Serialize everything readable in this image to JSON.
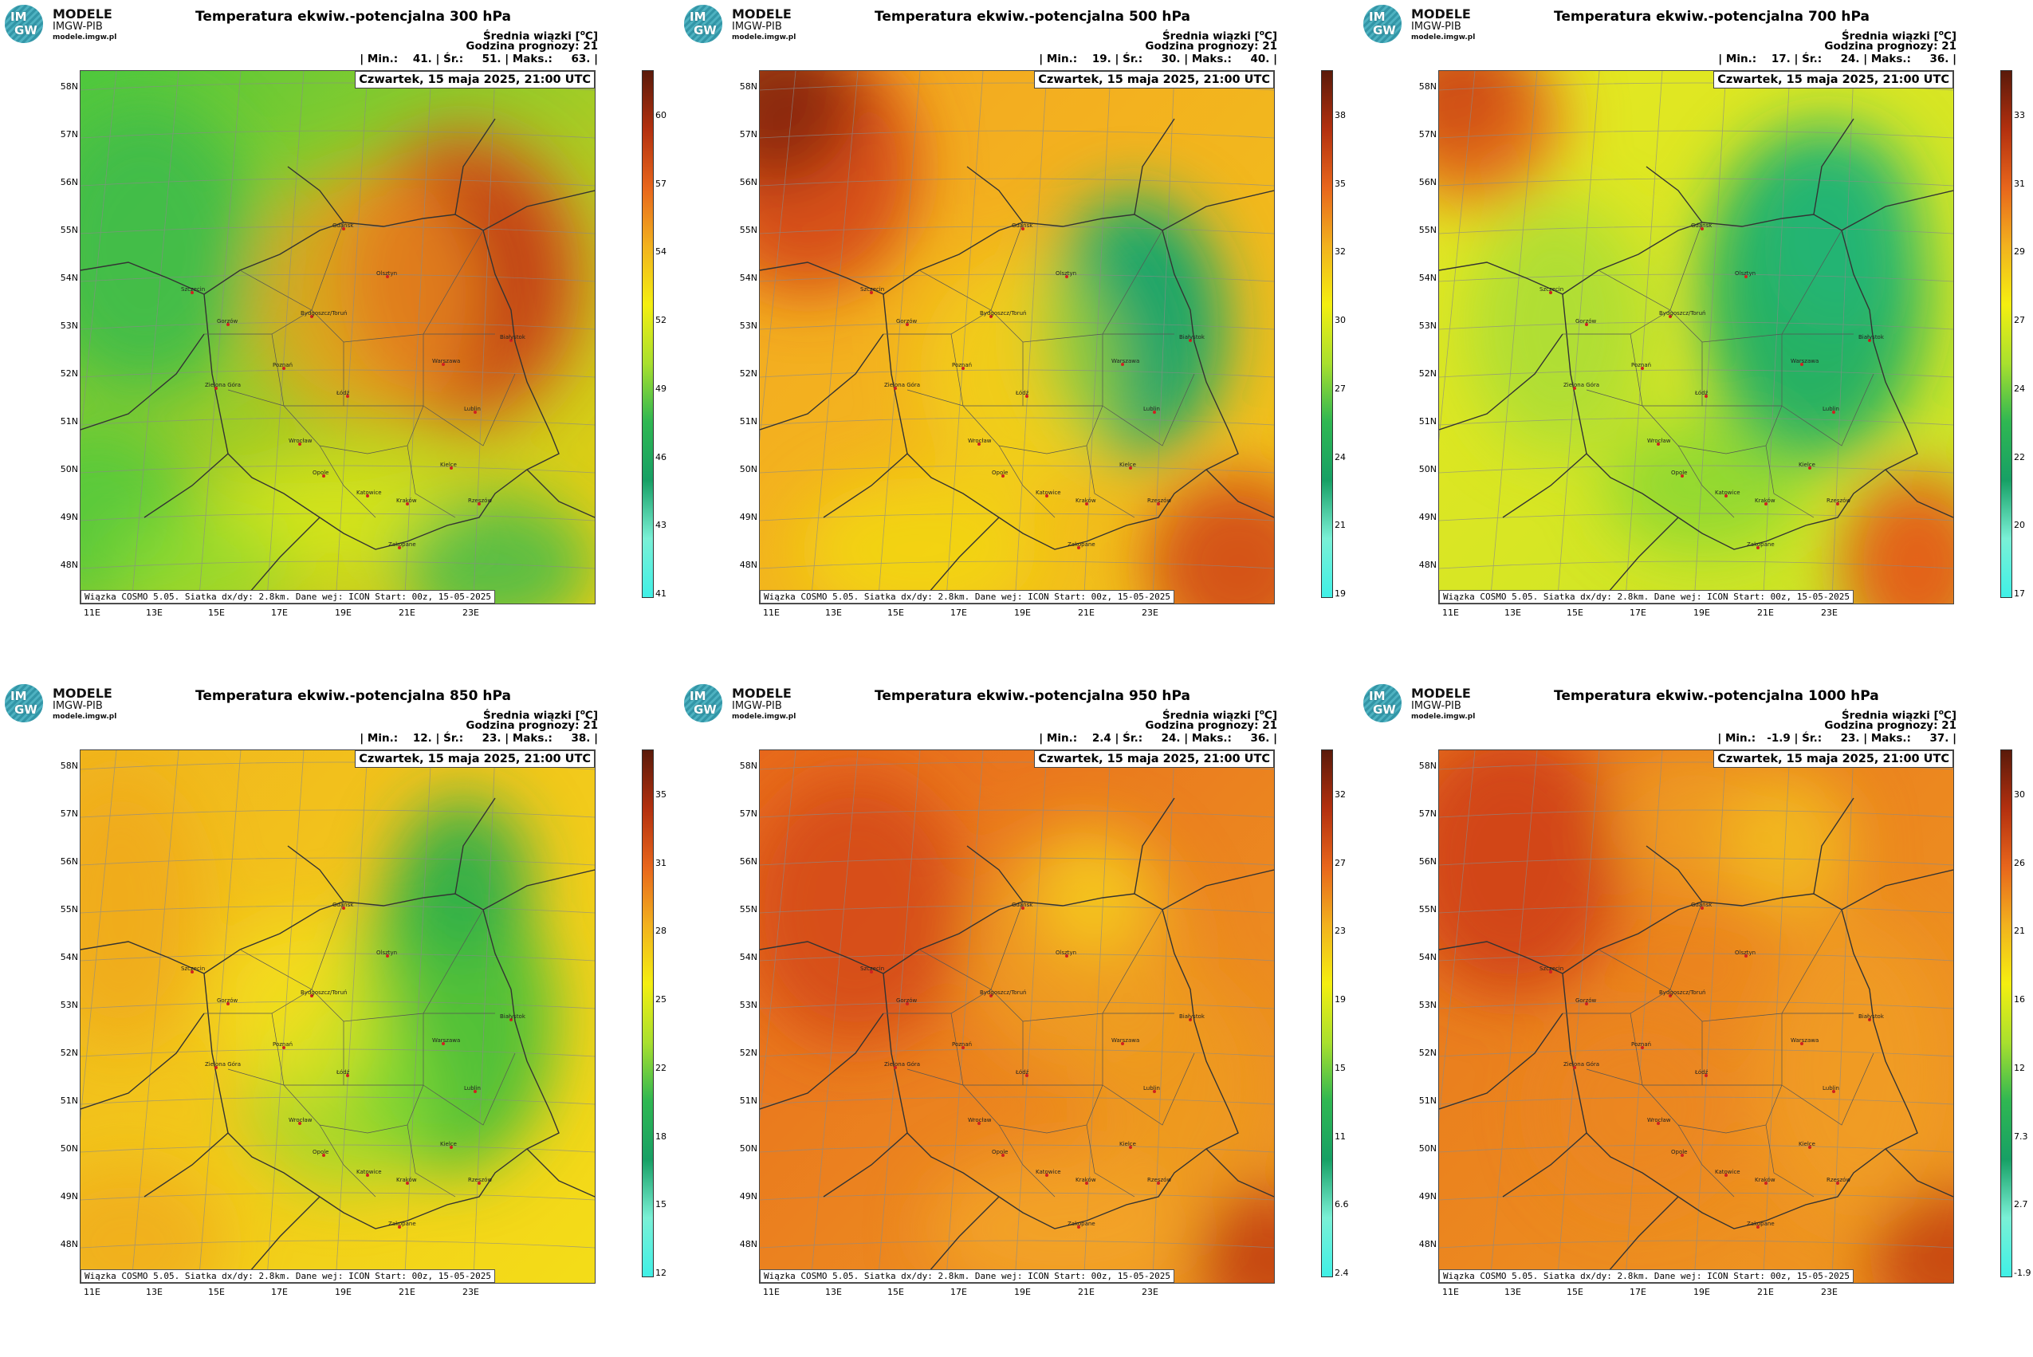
{
  "logo": {
    "badge_top": "IM",
    "badge_bottom": "GW",
    "line1": "MODELE",
    "line2": "IMGW-PIB",
    "line3": "modele.imgw.pl"
  },
  "axes": {
    "lat_labels": [
      "58N",
      "57N",
      "56N",
      "55N",
      "54N",
      "53N",
      "52N",
      "51N",
      "50N",
      "49N",
      "48N"
    ],
    "lon_labels": [
      "11E",
      "13E",
      "15E",
      "17E",
      "19E",
      "21E",
      "23E"
    ]
  },
  "cities": [
    "Gdańsk",
    "Olsztyn",
    "Szczecin",
    "Bydgoszcz/Toruń",
    "Białystok",
    "Gorzów",
    "Poznań",
    "Warszawa",
    "Zielona Góra",
    "Łódź",
    "Lublin",
    "Wrocław",
    "Opole",
    "Kielce",
    "Katowice",
    "Kraków",
    "Rzeszów",
    "Zakopane"
  ],
  "colors": {
    "cyan": "#40f0e0",
    "green": "#19b75a",
    "lightgreen": "#7ddc3c",
    "yellow": "#f4f000",
    "orange": "#f0a020",
    "red": "#e0501a",
    "darkred": "#6a1c0c"
  },
  "panels": [
    {
      "title": "Temperatura ekwiw.-potencjalna 300 hPa",
      "info_a": "Średnia wiązki [",
      "info_unit": "o",
      "info_b": "C]",
      "hour": "Godzina prognozy: 21",
      "stats": "| Min.:    41. | Śr.:     51. | Maks.:     63. |",
      "date": "Czwartek, 15 maja 2025, 21:00 UTC",
      "footer": "Wiązka COSMO 5.05. Siatka dx/dy: 2.8km. Dane wej: ICON Start: 00z, 15-05-2025",
      "cbar_ticks": [
        "60",
        "57",
        "54",
        "52",
        "49",
        "46",
        "43",
        "41"
      ]
    },
    {
      "title": "Temperatura ekwiw.-potencjalna 500 hPa",
      "info_a": "Średnia wiązki [",
      "info_unit": "o",
      "info_b": "C]",
      "hour": "Godzina prognozy: 21",
      "stats": "| Min.:    19. | Śr.:     30. | Maks.:     40. |",
      "date": "Czwartek, 15 maja 2025, 21:00 UTC",
      "footer": "Wiązka COSMO 5.05. Siatka dx/dy: 2.8km. Dane wej: ICON Start: 00z, 15-05-2025",
      "cbar_ticks": [
        "38",
        "35",
        "32",
        "30",
        "27",
        "24",
        "21",
        "19"
      ]
    },
    {
      "title": "Temperatura ekwiw.-potencjalna 700 hPa",
      "info_a": "Średnia wiązki [",
      "info_unit": "o",
      "info_b": "C]",
      "hour": "Godzina prognozy: 21",
      "stats": "| Min.:    17. | Śr.:     24. | Maks.:     36. |",
      "date": "Czwartek, 15 maja 2025, 21:00 UTC",
      "footer": "Wiązka COSMO 5.05. Siatka dx/dy: 2.8km. Dane wej: ICON Start: 00z, 15-05-2025",
      "cbar_ticks": [
        "33",
        "31",
        "29",
        "27",
        "24",
        "22",
        "20",
        "17"
      ]
    },
    {
      "title": "Temperatura ekwiw.-potencjalna 850 hPa",
      "info_a": "Średnia wiązki [",
      "info_unit": "o",
      "info_b": "C]",
      "hour": "Godzina prognozy: 21",
      "stats": "| Min.:    12. | Śr.:     23. | Maks.:     38. |",
      "date": "Czwartek, 15 maja 2025, 21:00 UTC",
      "footer": "Wiązka COSMO 5.05. Siatka dx/dy: 2.8km. Dane wej: ICON Start: 00z, 15-05-2025",
      "cbar_ticks": [
        "35",
        "31",
        "28",
        "25",
        "22",
        "18",
        "15",
        "12"
      ]
    },
    {
      "title": "Temperatura ekwiw.-potencjalna 950 hPa",
      "info_a": "Średnia wiązki [",
      "info_unit": "o",
      "info_b": "C]",
      "hour": "Godzina prognozy: 21",
      "stats": "| Min.:    2.4 | Śr.:     24. | Maks.:     36. |",
      "date": "Czwartek, 15 maja 2025, 21:00 UTC",
      "footer": "Wiązka COSMO 5.05. Siatka dx/dy: 2.8km. Dane wej: ICON Start: 00z, 15-05-2025",
      "cbar_ticks": [
        "32",
        "27",
        "23",
        "19",
        "15",
        "11",
        "6.6",
        "2.4"
      ]
    },
    {
      "title": "Temperatura ekwiw.-potencjalna 1000 hPa",
      "info_a": "Średnia wiązki [",
      "info_unit": "o",
      "info_b": "C]",
      "hour": "Godzina prognozy: 21",
      "stats": "| Min.:   -1.9 | Śr.:     23. | Maks.:     37. |",
      "date": "Czwartek, 15 maja 2025, 21:00 UTC",
      "footer": "Wiązka COSMO 5.05. Siatka dx/dy: 2.8km. Dane wej: ICON Start: 00z, 15-05-2025",
      "cbar_ticks": [
        "30",
        "26",
        "21",
        "16",
        "12",
        "7.3",
        "2.7",
        "-1.9"
      ]
    }
  ],
  "chart_data": [
    {
      "type": "heatmap",
      "title": "Temperatura ekwiw.-potencjalna 300 hPa",
      "unit": "°C",
      "min": 41,
      "mean": 51,
      "max": 63,
      "colorbar_ticks": [
        60,
        57,
        54,
        52,
        49,
        46,
        43,
        41
      ]
    },
    {
      "type": "heatmap",
      "title": "Temperatura ekwiw.-potencjalna 500 hPa",
      "unit": "°C",
      "min": 19,
      "mean": 30,
      "max": 40,
      "colorbar_ticks": [
        38,
        35,
        32,
        30,
        27,
        24,
        21,
        19
      ]
    },
    {
      "type": "heatmap",
      "title": "Temperatura ekwiw.-potencjalna 700 hPa",
      "unit": "°C",
      "min": 17,
      "mean": 24,
      "max": 36,
      "colorbar_ticks": [
        33,
        31,
        29,
        27,
        24,
        22,
        20,
        17
      ]
    },
    {
      "type": "heatmap",
      "title": "Temperatura ekwiw.-potencjalna 850 hPa",
      "unit": "°C",
      "min": 12,
      "mean": 23,
      "max": 38,
      "colorbar_ticks": [
        35,
        31,
        28,
        25,
        22,
        18,
        15,
        12
      ]
    },
    {
      "type": "heatmap",
      "title": "Temperatura ekwiw.-potencjalna 950 hPa",
      "unit": "°C",
      "min": 2.4,
      "mean": 24,
      "max": 36,
      "colorbar_ticks": [
        32,
        27,
        23,
        19,
        15,
        11,
        6.6,
        2.4
      ]
    },
    {
      "type": "heatmap",
      "title": "Temperatura ekwiw.-potencjalna 1000 hPa",
      "unit": "°C",
      "min": -1.9,
      "mean": 23,
      "max": 37,
      "colorbar_ticks": [
        30,
        26,
        21,
        16,
        12,
        7.3,
        2.7,
        -1.9
      ]
    }
  ]
}
